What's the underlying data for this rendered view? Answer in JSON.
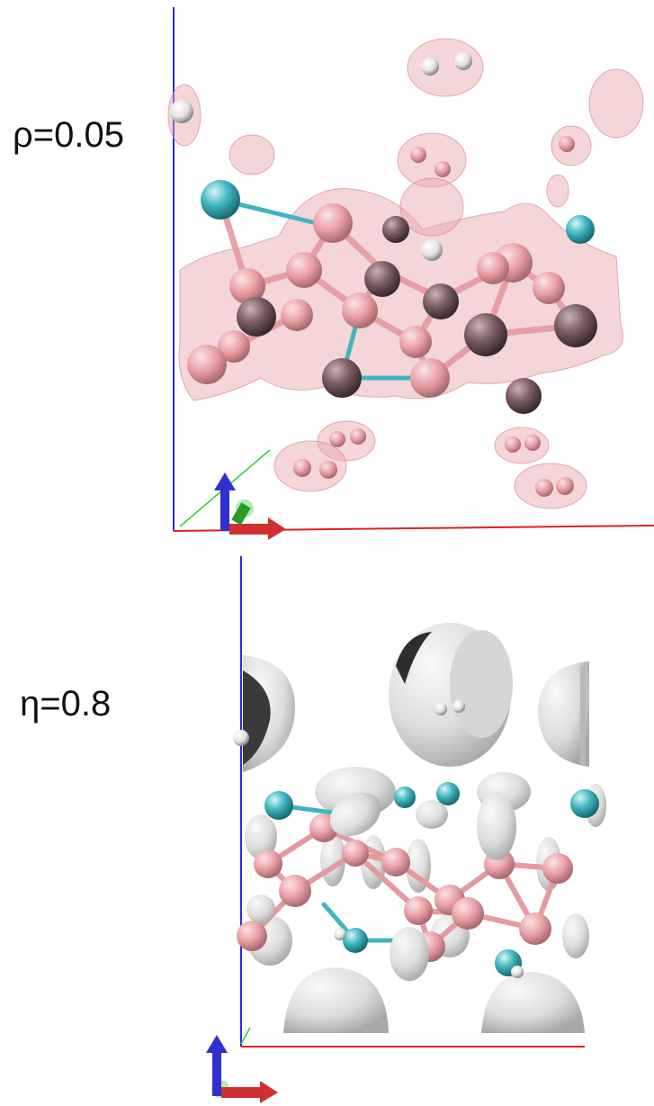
{
  "panels": [
    {
      "label": "ρ=0.05",
      "surface_color": "#e8a3a8",
      "style": "translucent isosurface"
    },
    {
      "label": "η=0.8",
      "surface_color": "#e6e6e6",
      "style": "opaque isosurface"
    }
  ],
  "atom_colors": {
    "boron_pink": "#e9a0a6",
    "dark_atom": "#8a6f72",
    "cyan_atom": "#3fb6bf",
    "hydrogen_white": "#f2f2f2"
  },
  "axis_colors": {
    "x": "#e02020",
    "y": "#20c020",
    "z": "#2020e0"
  }
}
